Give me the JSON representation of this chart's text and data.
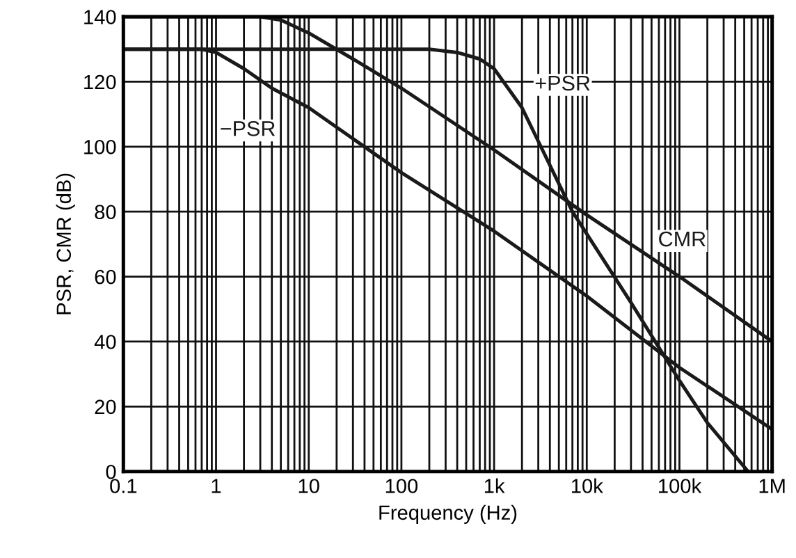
{
  "chart_data": {
    "type": "line",
    "xlabel": "Frequency (Hz)",
    "ylabel": "PSR, CMR (dB)",
    "log": "x",
    "grid": true,
    "legend": false,
    "marker": "none",
    "line_style": "solid",
    "xlim": [
      0.1,
      1000000
    ],
    "ylim": [
      0,
      140
    ],
    "xticks": [
      0.1,
      1,
      10,
      100,
      {
        "value": 1000,
        "label": "1k"
      },
      {
        "value": 10000,
        "label": "10k"
      },
      {
        "value": 100000,
        "label": "100k"
      },
      {
        "value": 1000000,
        "label": "1M"
      }
    ],
    "yticks": [
      0,
      20,
      40,
      60,
      80,
      100,
      120,
      140
    ],
    "series": [
      {
        "name": "CMR",
        "color": "#1a1a1a",
        "x": [
          0.1,
          3,
          5,
          10,
          30,
          100,
          1000,
          10000,
          100000,
          1000000
        ],
        "values": [
          140,
          140,
          139,
          135,
          127,
          118,
          99,
          79,
          60,
          40
        ]
      },
      {
        "name": "+PSR",
        "color": "#1a1a1a",
        "x": [
          0.1,
          200,
          400,
          700,
          1000,
          2000,
          7000,
          30000,
          100000,
          200000,
          550000
        ],
        "values": [
          130,
          130,
          129,
          127,
          124,
          112,
          80,
          52,
          28,
          15,
          0
        ]
      },
      {
        "name": "−PSR",
        "color": "#1a1a1a",
        "x": [
          0.1,
          0.7,
          1,
          2,
          4,
          10,
          100,
          1000,
          10000,
          100000,
          1000000
        ],
        "values": [
          130,
          130,
          129,
          124,
          118,
          112,
          92,
          74,
          54,
          32,
          13
        ]
      }
    ]
  }
}
